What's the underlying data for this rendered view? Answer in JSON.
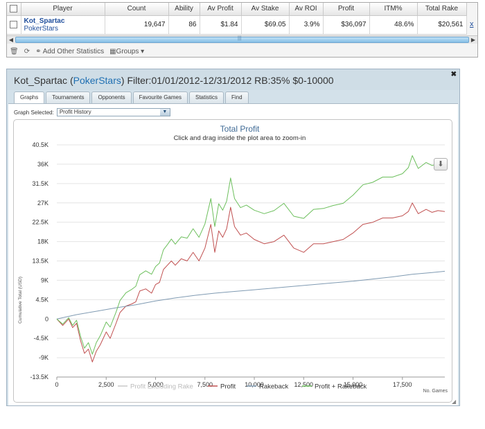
{
  "grid": {
    "columns": [
      "Player",
      "Count",
      "Ability",
      "Av Profit",
      "Av Stake",
      "Av ROI",
      "Profit",
      "ITM%",
      "Total Rake"
    ],
    "row": {
      "player": "Kot_Spartac",
      "site": "PokerStars",
      "count": "19,647",
      "ability": "86",
      "av_profit": "$1.84",
      "av_stake": "$69.05",
      "av_roi": "3.9%",
      "profit": "$36,097",
      "itm": "48.6%",
      "total_rake": "$20,561"
    },
    "row_action": "x",
    "toolbar": {
      "add_stats": "Add Other Statistics",
      "groups": "Groups"
    }
  },
  "window": {
    "title_player": "Kot_Spartac",
    "title_paren_open": "(",
    "title_site": "PokerStars",
    "title_paren_close": ")",
    "title_filter": "Filter:01/01/2012-12/31/2012 RB:35% $0-10000",
    "tabs": [
      "Graphs",
      "Tournaments",
      "Opponents",
      "Favourite Games",
      "Statistics",
      "Find"
    ],
    "active_tab": "Graphs",
    "graph_selected_label": "Graph Selected:",
    "graph_selected_value": "Profit History"
  },
  "colors": {
    "profit": "#c05050",
    "rakeback": "#7f9ab2",
    "profit_plus_rakeback": "#6cbf5c",
    "profit_excluding_rake": "#c8c8c8",
    "title": "#3f6a95"
  },
  "chart_data": {
    "type": "line",
    "title": "Total Profit",
    "subtitle": "Click and drag inside the plot area to zoom-in",
    "ylabel": "Cumulative Total (USD)",
    "xlabel": "No. Games",
    "xlim": [
      0,
      19647
    ],
    "ylim": [
      -13500,
      40500
    ],
    "x_ticks": [
      0,
      2500,
      5000,
      7500,
      10000,
      12500,
      15000,
      17500
    ],
    "x_tick_labels": [
      "0",
      "2,500",
      "5,000",
      "7,500",
      "10,000",
      "12,500",
      "15,000",
      "17,500"
    ],
    "y_ticks": [
      -13500,
      -9000,
      -4500,
      0,
      4500,
      9000,
      13500,
      18000,
      22500,
      27000,
      31500,
      36000,
      40500
    ],
    "y_tick_labels": [
      "-13.5K",
      "-9K",
      "-4.5K",
      "0",
      "4.5K",
      "9K",
      "13.5K",
      "18K",
      "22.5K",
      "27K",
      "31.5K",
      "36K",
      "40.5K"
    ],
    "legend": [
      "Profit Excluding Rake",
      "Profit",
      "Rakeback",
      "Profit + Rakeback"
    ],
    "legend_position": "bottom",
    "series": [
      {
        "name": "Profit",
        "x": [
          0,
          300,
          600,
          800,
          1000,
          1200,
          1400,
          1600,
          1800,
          2000,
          2200,
          2500,
          2700,
          3000,
          3200,
          3500,
          3800,
          4000,
          4200,
          4500,
          4800,
          5000,
          5200,
          5400,
          5600,
          5800,
          6000,
          6300,
          6600,
          6900,
          7200,
          7500,
          7800,
          8000,
          8200,
          8400,
          8600,
          8800,
          9000,
          9300,
          9600,
          10000,
          10500,
          11000,
          11500,
          12000,
          12500,
          13000,
          13500,
          14000,
          14500,
          15000,
          15500,
          16000,
          16500,
          17000,
          17500,
          17800,
          18000,
          18300,
          18700,
          19000,
          19300,
          19647
        ],
        "y": [
          0,
          -1500,
          0,
          -2000,
          -1000,
          -5000,
          -8000,
          -7000,
          -10000,
          -7500,
          -6000,
          -3000,
          -4500,
          -1000,
          1500,
          3000,
          3500,
          4000,
          6500,
          7000,
          6000,
          8000,
          8500,
          11500,
          12500,
          13500,
          12500,
          14000,
          13500,
          15500,
          13500,
          16500,
          22000,
          15500,
          20500,
          19000,
          21000,
          26000,
          21500,
          19500,
          20000,
          18500,
          17500,
          18000,
          19500,
          16500,
          15500,
          17500,
          17500,
          18000,
          18500,
          20000,
          22000,
          22500,
          23500,
          23500,
          24000,
          25000,
          27000,
          24500,
          25500,
          24800,
          25200,
          25000
        ]
      },
      {
        "name": "Rakeback",
        "x": [
          0,
          1000,
          2000,
          3000,
          4000,
          5000,
          6000,
          7000,
          8000,
          9000,
          10000,
          11000,
          12000,
          13000,
          14000,
          15000,
          16000,
          17000,
          18000,
          19000,
          19647
        ],
        "y": [
          0,
          1000,
          1800,
          2600,
          3300,
          4200,
          4900,
          5500,
          6000,
          6400,
          6800,
          7200,
          7600,
          8000,
          8400,
          8800,
          9300,
          9800,
          10400,
          10800,
          11100
        ]
      },
      {
        "name": "Profit + Rakeback",
        "x": [
          0,
          300,
          600,
          800,
          1000,
          1200,
          1400,
          1600,
          1800,
          2000,
          2200,
          2500,
          2700,
          3000,
          3200,
          3500,
          3800,
          4000,
          4200,
          4500,
          4800,
          5000,
          5200,
          5400,
          5600,
          5800,
          6000,
          6300,
          6600,
          6900,
          7200,
          7500,
          7800,
          8000,
          8200,
          8400,
          8600,
          8800,
          9000,
          9300,
          9600,
          10000,
          10500,
          11000,
          11500,
          12000,
          12500,
          13000,
          13500,
          14000,
          14500,
          15000,
          15500,
          16000,
          16500,
          17000,
          17500,
          17800,
          18000,
          18300,
          18700,
          19000,
          19300,
          19647
        ],
        "y": [
          0,
          -1200,
          300,
          -1500,
          -300,
          -4000,
          -6800,
          -5500,
          -8200,
          -5500,
          -3900,
          -700,
          -1900,
          1600,
          4300,
          6100,
          6900,
          7600,
          10300,
          11200,
          10400,
          12200,
          13000,
          16100,
          17300,
          18600,
          17400,
          19100,
          18800,
          21000,
          19000,
          22100,
          28000,
          21500,
          26800,
          25300,
          27400,
          32800,
          28000,
          25900,
          26500,
          25300,
          24500,
          25200,
          26900,
          23900,
          23400,
          25500,
          25700,
          26400,
          26900,
          28800,
          31200,
          31800,
          33000,
          33000,
          33800,
          35200,
          38000,
          35000,
          36400,
          35700,
          36000,
          36100
        ]
      }
    ]
  }
}
